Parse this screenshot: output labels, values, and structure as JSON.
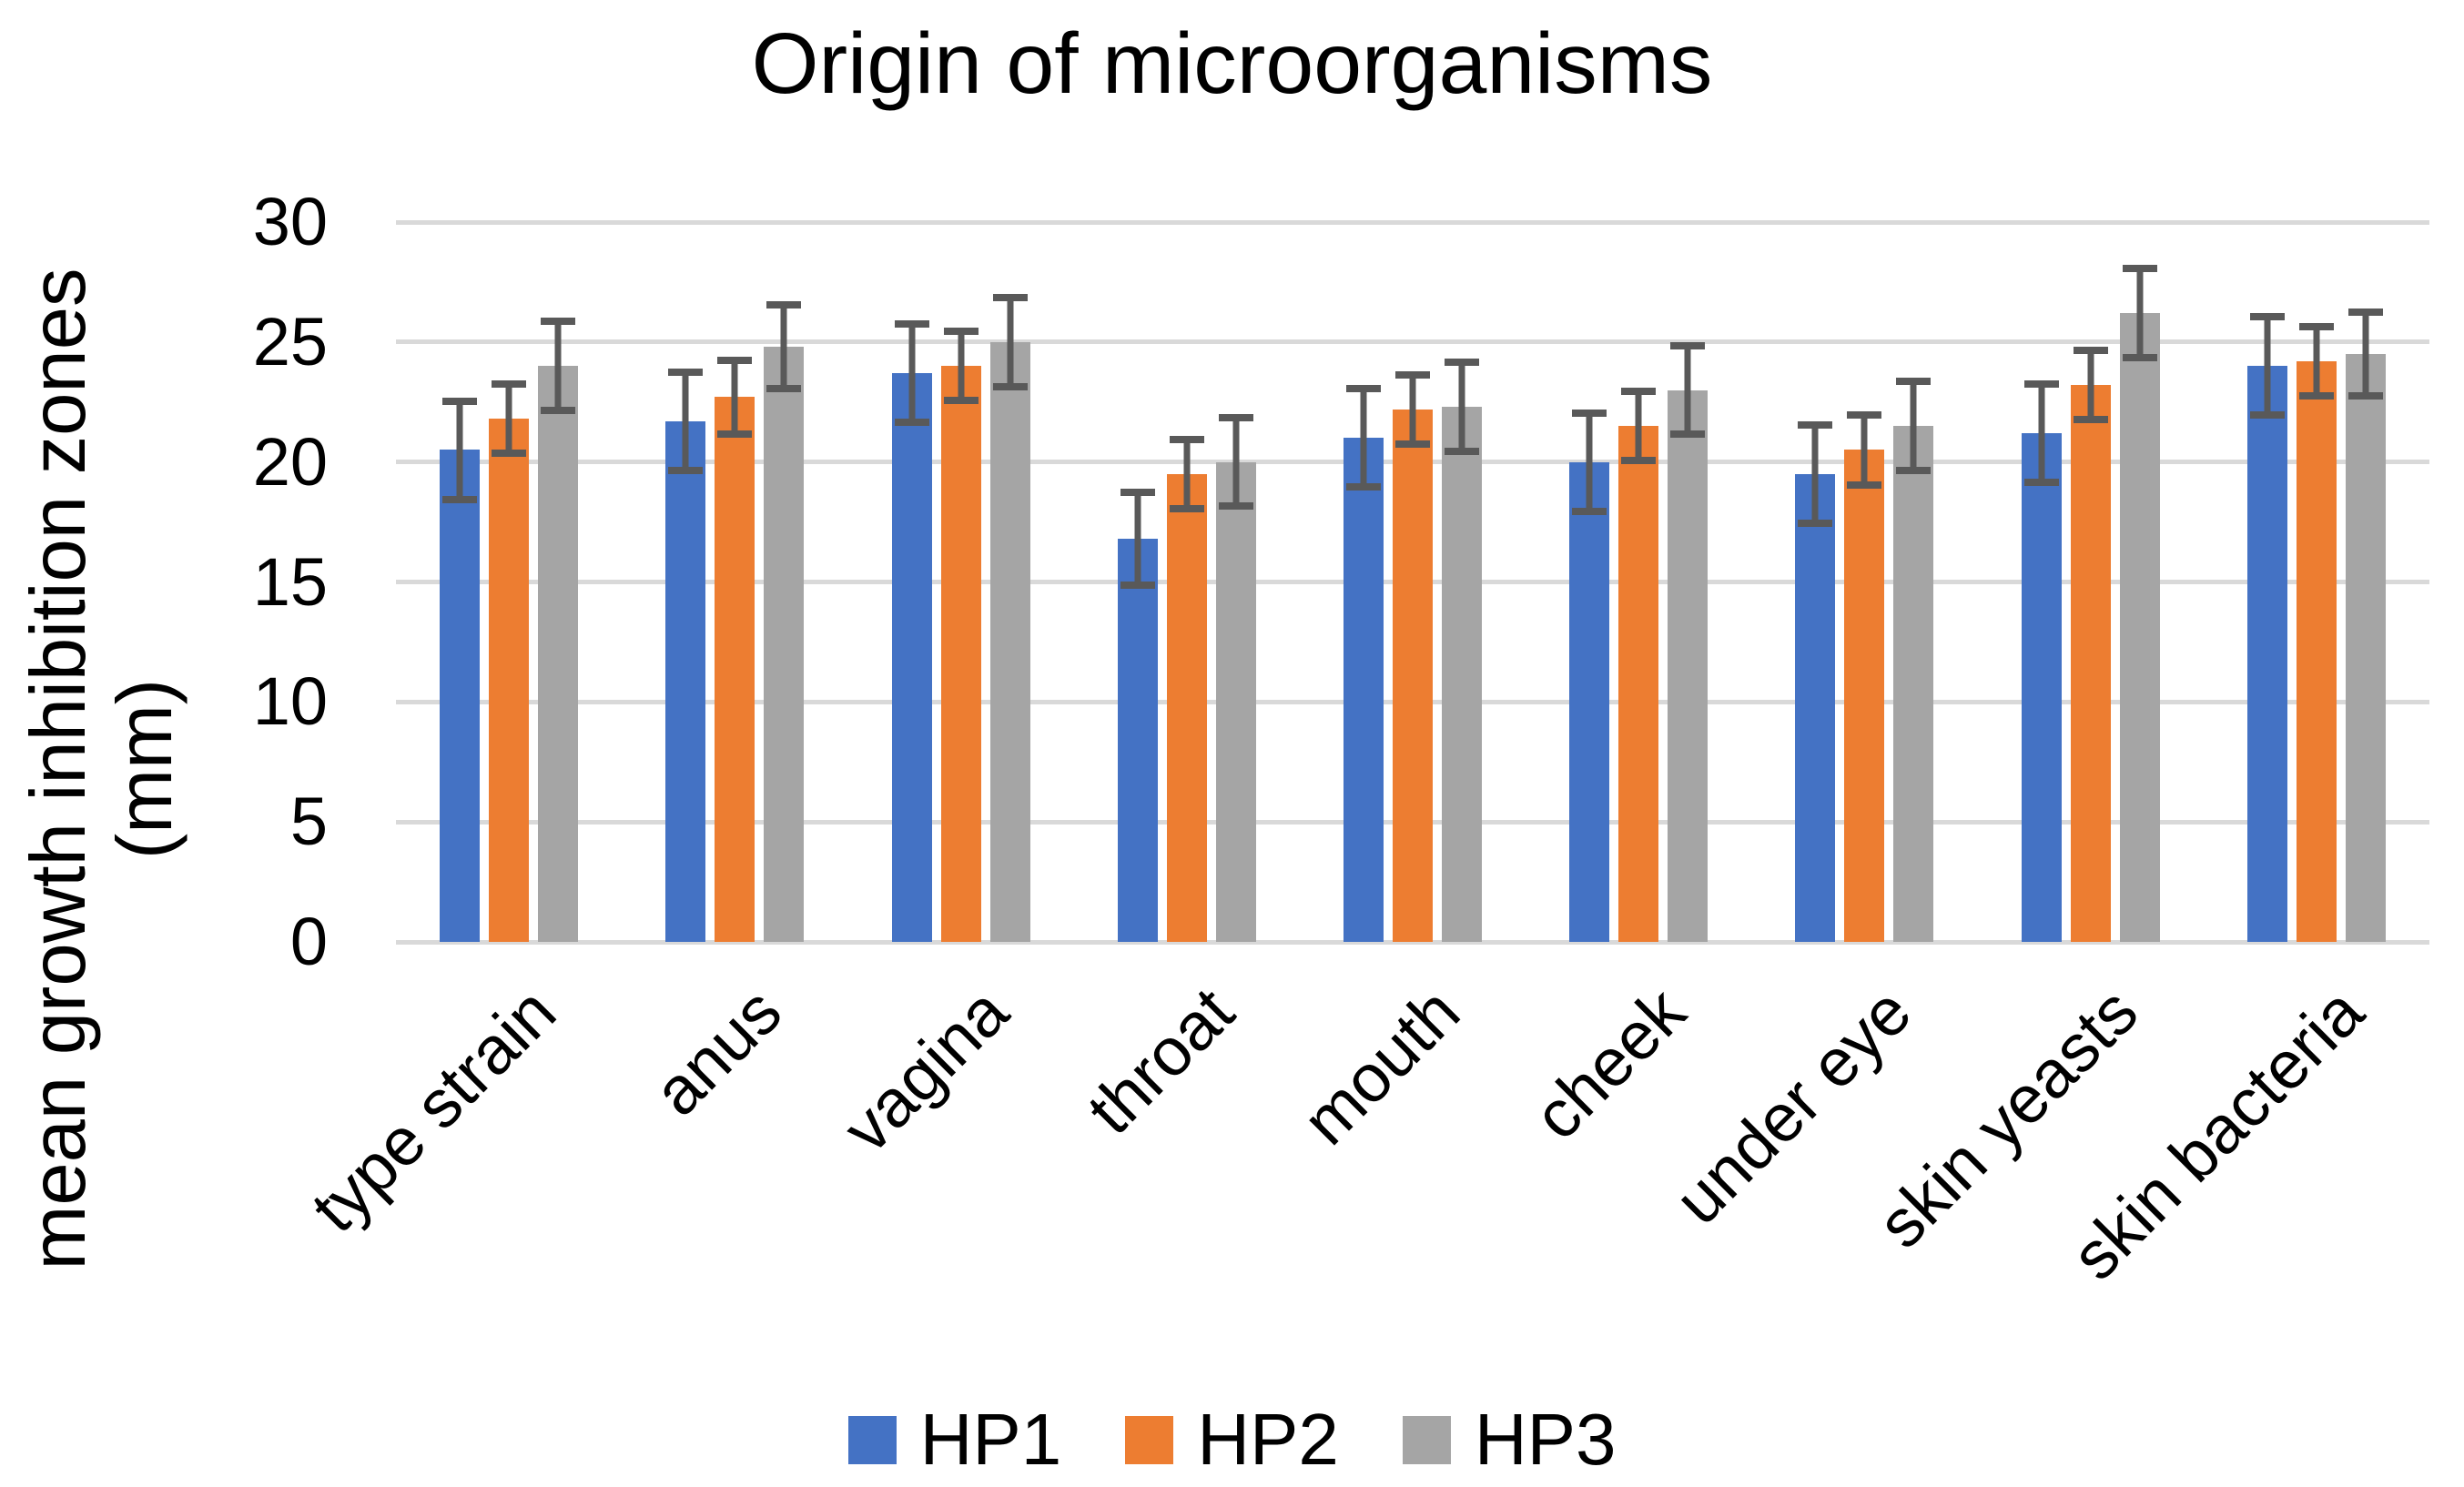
{
  "chart_data": {
    "type": "bar",
    "title": "Origin of microorganisms",
    "ylabel_line1": "mean growth inhibition zones",
    "ylabel_line2": "(mm)",
    "xlabel": "",
    "ylim": [
      0,
      30
    ],
    "yticks": [
      0,
      5,
      10,
      15,
      20,
      25,
      30
    ],
    "grid": true,
    "legend_position": "bottom",
    "gridline_color": "#D9D9D9",
    "error_bar_color": "#595959",
    "categories": [
      "type strain",
      "anus",
      "vagina",
      "throat",
      "mouth",
      "cheek",
      "under eye",
      "skin yeasts",
      "skin bacteria"
    ],
    "series": [
      {
        "name": "HP1",
        "color": "#4472C4",
        "values": [
          20.5,
          21.7,
          23.7,
          16.8,
          21.0,
          20.0,
          19.5,
          21.2,
          24.0
        ],
        "errors": [
          2.2,
          2.2,
          2.2,
          2.1,
          2.2,
          2.2,
          2.2,
          2.2,
          2.2
        ]
      },
      {
        "name": "HP2",
        "color": "#ED7D31",
        "values": [
          21.8,
          22.7,
          24.0,
          19.5,
          22.2,
          21.5,
          20.5,
          23.2,
          24.2
        ],
        "errors": [
          1.6,
          1.7,
          1.6,
          1.6,
          1.6,
          1.6,
          1.6,
          1.6,
          1.6
        ]
      },
      {
        "name": "HP3",
        "color": "#A5A5A5",
        "values": [
          24.0,
          24.8,
          25.0,
          20.0,
          22.3,
          23.0,
          21.5,
          26.2,
          24.5
        ],
        "errors": [
          2.0,
          1.9,
          2.0,
          2.0,
          2.0,
          2.0,
          2.0,
          2.0,
          1.9
        ]
      }
    ]
  }
}
